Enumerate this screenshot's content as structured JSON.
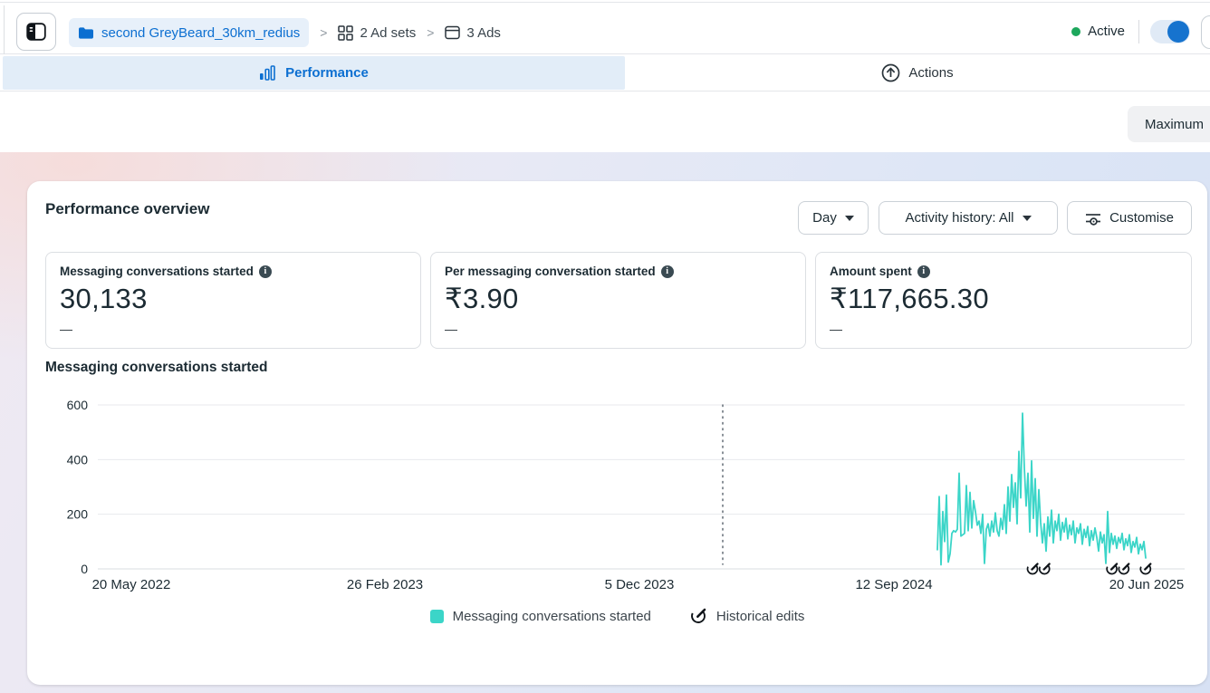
{
  "theme": {
    "accent": "#0c6fd1",
    "teal": "#3bd5c8",
    "green": "#1da75c",
    "text": "#1c2b33"
  },
  "header": {
    "breadcrumb": {
      "campaign": "second GreyBeard_30km_redius",
      "adsets_label": "2 Ad sets",
      "ads_label": "3 Ads",
      "separator": ">"
    },
    "status_label": "Active",
    "toggle_on": true
  },
  "tabs": {
    "performance_label": "Performance",
    "actions_label": "Actions"
  },
  "toolbar": {
    "maximum_label": "Maximum"
  },
  "overview": {
    "title": "Performance overview",
    "controls": {
      "day_label": "Day",
      "activity_label": "Activity history: All",
      "customise_label": "Customise"
    },
    "metrics": [
      {
        "label": "Messaging conversations started",
        "value": "30,133",
        "sub": "—"
      },
      {
        "label": "Per messaging conversation started",
        "value": "₹3.90",
        "sub": "—"
      },
      {
        "label": "Amount spent",
        "value": "₹117,665.30",
        "sub": "—"
      }
    ]
  },
  "chart_data": {
    "type": "line",
    "title": "Messaging conversations started",
    "xlabel": "",
    "ylabel": "",
    "ylim": [
      0,
      600
    ],
    "yticks": [
      0,
      200,
      400,
      600
    ],
    "grid": true,
    "legend_position": "bottom",
    "x_ticks": [
      {
        "label": "20 May 2022",
        "pos": 0.0308
      },
      {
        "label": "26 Feb 2023",
        "pos": 0.2642
      },
      {
        "label": "5 Dec 2023",
        "pos": 0.4983
      },
      {
        "label": "12 Sep 2024",
        "pos": 0.7325
      },
      {
        "label": "20 Jun 2025",
        "pos": 0.965
      }
    ],
    "annotation_line": {
      "pos": 0.575,
      "style": "dotted"
    },
    "historical_edit_markers": [
      0.86,
      0.871,
      0.933,
      0.944,
      0.964
    ],
    "legend": [
      {
        "label": "Messaging conversations started",
        "type": "swatch",
        "color": "#3bd5c8"
      },
      {
        "label": "Historical edits",
        "type": "icon"
      }
    ],
    "series": [
      {
        "name": "Messaging conversations started",
        "color": "#3bd5c8",
        "x_start": 0.7725,
        "x_step": 0.0016667,
        "values": [
          70,
          265,
          15,
          210,
          100,
          270,
          25,
          55,
          130,
          140,
          135,
          145,
          350,
          120,
          125,
          130,
          305,
          140,
          280,
          150,
          250,
          210,
          160,
          175,
          130,
          200,
          20,
          145,
          165,
          120,
          175,
          135,
          205,
          140,
          120,
          185,
          145,
          235,
          130,
          300,
          175,
          345,
          225,
          315,
          165,
          430,
          260,
          570,
          370,
          230,
          350,
          135,
          395,
          185,
          330,
          120,
          290,
          170,
          95,
          165,
          65,
          190,
          120,
          215,
          95,
          175,
          140,
          200,
          105,
          170,
          135,
          185,
          110,
          160,
          125,
          175,
          95,
          150,
          130,
          165,
          90,
          145,
          115,
          155,
          85,
          140,
          105,
          150,
          115,
          65,
          135,
          95,
          125,
          20,
          210,
          60,
          130,
          90,
          120,
          75,
          115,
          95,
          130,
          70,
          110,
          85,
          125,
          60,
          100,
          80,
          115,
          55,
          90,
          70,
          100,
          40
        ]
      }
    ]
  }
}
